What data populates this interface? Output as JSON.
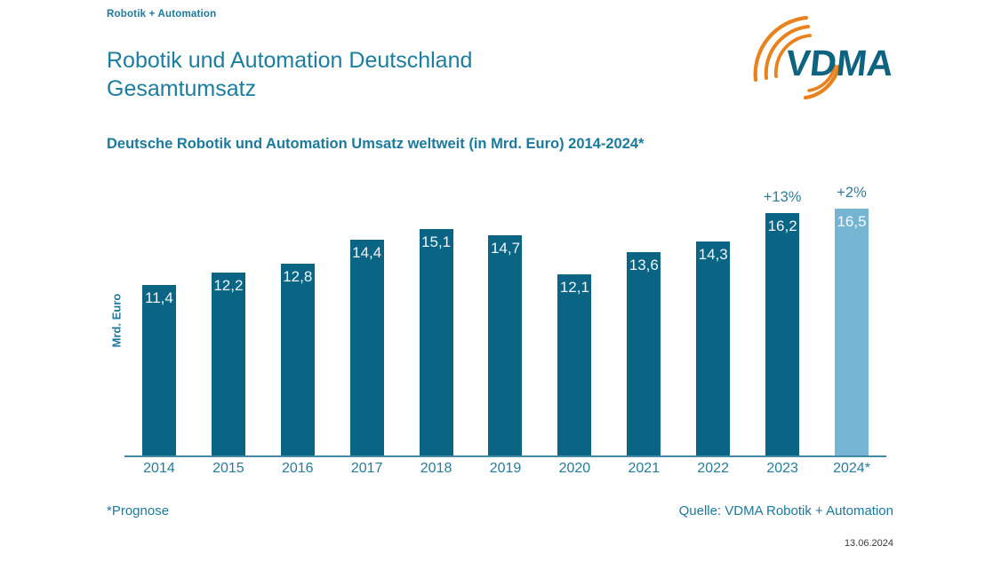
{
  "eyebrow": "Robotik + Automation",
  "title": "Robotik und Automation Deutschland\nGesamtumsatz",
  "subtitle": "Deutsche Robotik und Automation Umsatz weltweit (in Mrd. Euro) 2014-2024*",
  "logo": {
    "text": "VDMA",
    "text_color": "#0e6380",
    "arc_color": "#e8821e"
  },
  "chart_data": {
    "type": "bar",
    "title": "Deutsche Robotik und Automation Umsatz weltweit (in Mrd. Euro) 2014-2024*",
    "xlabel": "",
    "ylabel": "Mrd. Euro",
    "categories": [
      "2014",
      "2015",
      "2016",
      "2017",
      "2018",
      "2019",
      "2020",
      "2021",
      "2022",
      "2023",
      "2024*"
    ],
    "values": [
      11.4,
      12.2,
      12.8,
      14.4,
      15.1,
      14.7,
      12.1,
      13.6,
      14.3,
      16.2,
      16.5
    ],
    "value_labels": [
      "11,4",
      "12,2",
      "12,8",
      "14,4",
      "15,1",
      "14,7",
      "12,1",
      "13,6",
      "14,3",
      "16,2",
      "16,5"
    ],
    "annotations": [
      {
        "index": 9,
        "label": "+13%"
      },
      {
        "index": 10,
        "label": "+2%"
      }
    ],
    "forecast_index": 10,
    "bar_color": "#0a6484",
    "forecast_color": "#75b5d2",
    "ylim": [
      0,
      19.14
    ],
    "grid": false,
    "legend": false
  },
  "footer": {
    "note": "*Prognose",
    "source": "Quelle: VDMA Robotik + Automation",
    "date": "13.06.2024"
  },
  "colors": {
    "accent_teal": "#1b7a9d",
    "axis_line": "#4489a7",
    "annotation_text": "#2f7d9c",
    "date_text": "#3a3a3a"
  }
}
